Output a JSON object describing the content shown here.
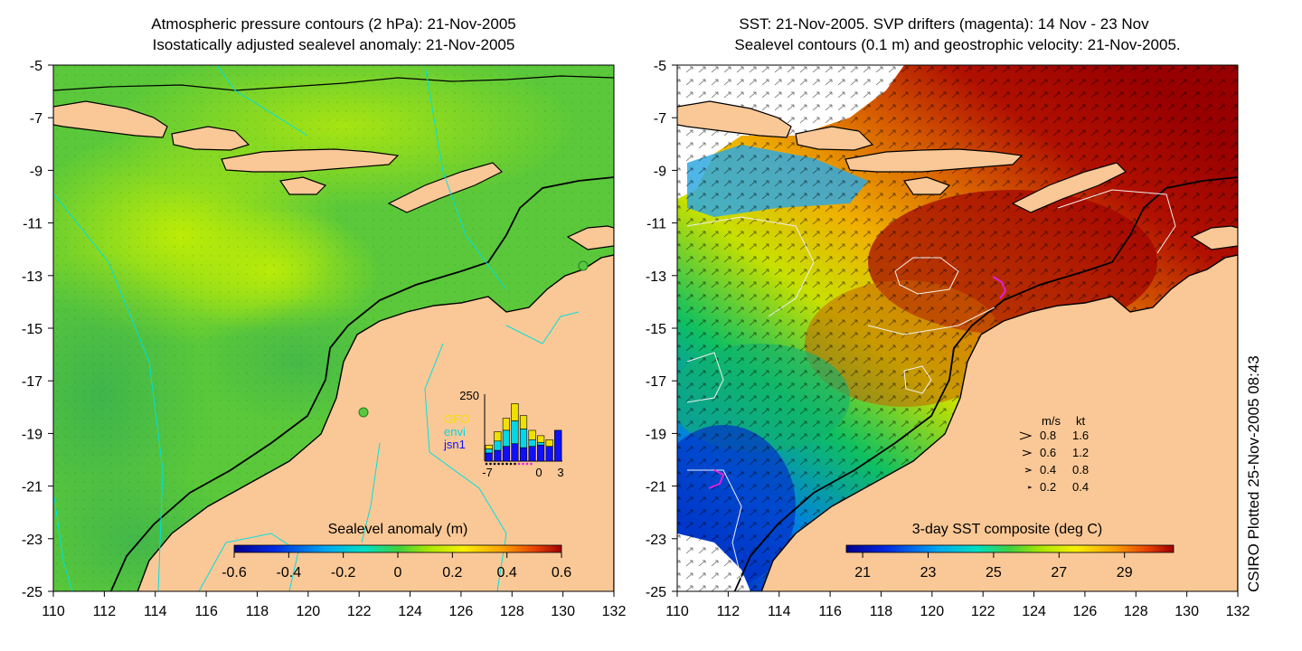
{
  "chart_data": [
    {
      "type": "heatmap",
      "title_lines": [
        "Atmospheric pressure contours (2 hPa): 21-Nov-2005",
        "Isostatically adjusted sealevel anomaly: 21-Nov-2005"
      ],
      "xlim": [
        110,
        132
      ],
      "ylim": [
        -25,
        -5
      ],
      "x_ticks": [
        110,
        112,
        114,
        116,
        118,
        120,
        122,
        124,
        126,
        128,
        130,
        132
      ],
      "y_ticks": [
        -5,
        -7,
        -9,
        -11,
        -13,
        -15,
        -17,
        -19,
        -21,
        -23,
        -25
      ],
      "colorbar": {
        "label": "Sealevel anomaly (m)",
        "range": [
          -0.6,
          0.6
        ],
        "ticks": [
          "-0.6",
          "-0.4",
          "-0.2",
          "0",
          "0.2",
          "0.4",
          "0.6"
        ]
      },
      "inset_histogram": {
        "y_max_label": "250",
        "x_tick_labels": [
          "-7",
          "0",
          "3"
        ],
        "legend": [
          {
            "name": "GFO",
            "color": "#f0e000"
          },
          {
            "name": "envi",
            "color": "#00d8e8"
          },
          {
            "name": "jsn1",
            "color": "#1010ff"
          }
        ],
        "bars": [
          {
            "total": 60,
            "jsn1": 30,
            "envi": 45
          },
          {
            "total": 110,
            "jsn1": 40,
            "envi": 75
          },
          {
            "total": 160,
            "jsn1": 55,
            "envi": 115
          },
          {
            "total": 215,
            "jsn1": 65,
            "envi": 150
          },
          {
            "total": 170,
            "jsn1": 50,
            "envi": 120
          },
          {
            "total": 115,
            "jsn1": 55,
            "envi": 80
          },
          {
            "total": 95,
            "jsn1": 60,
            "envi": 70
          },
          {
            "total": 80,
            "jsn1": 55,
            "envi": 55
          },
          {
            "total": 115,
            "jsn1": 115,
            "envi": 0
          }
        ]
      }
    },
    {
      "type": "heatmap",
      "title_lines": [
        "SST: 21-Nov-2005. SVP drifters (magenta): 14 Nov - 23 Nov",
        "Sealevel contours (0.1 m) and geostrophic velocity: 21-Nov-2005."
      ],
      "xlim": [
        110,
        132
      ],
      "ylim": [
        -25,
        -5
      ],
      "x_ticks": [
        110,
        112,
        114,
        116,
        118,
        120,
        122,
        124,
        126,
        128,
        130,
        132
      ],
      "y_ticks": [
        -5,
        -7,
        -9,
        -11,
        -13,
        -15,
        -17,
        -19,
        -21,
        -23,
        -25
      ],
      "colorbar": {
        "label": "3-day SST composite (deg C)",
        "range": [
          20.5,
          30.5
        ],
        "ticks": [
          "21",
          "23",
          "25",
          "27",
          "29"
        ]
      },
      "velocity_legend": {
        "headers": [
          "m/s",
          "kt"
        ],
        "rows": [
          {
            "ms": "0.8",
            "kt": "1.6"
          },
          {
            "ms": "0.6",
            "kt": "1.2"
          },
          {
            "ms": "0.4",
            "kt": "0.8"
          },
          {
            "ms": "0.2",
            "kt": "0.4"
          }
        ]
      }
    }
  ],
  "side_label": "CSIRO Plotted 25-Nov-2005 08:43",
  "colors": {
    "land": "#fac896",
    "coast": "#000000",
    "contour_left": "#00e0e0",
    "contour_right": "#f0f0f0",
    "drifter": "#e020e0"
  },
  "icons": {
    "velocity_arrow": "arrow-icon"
  }
}
